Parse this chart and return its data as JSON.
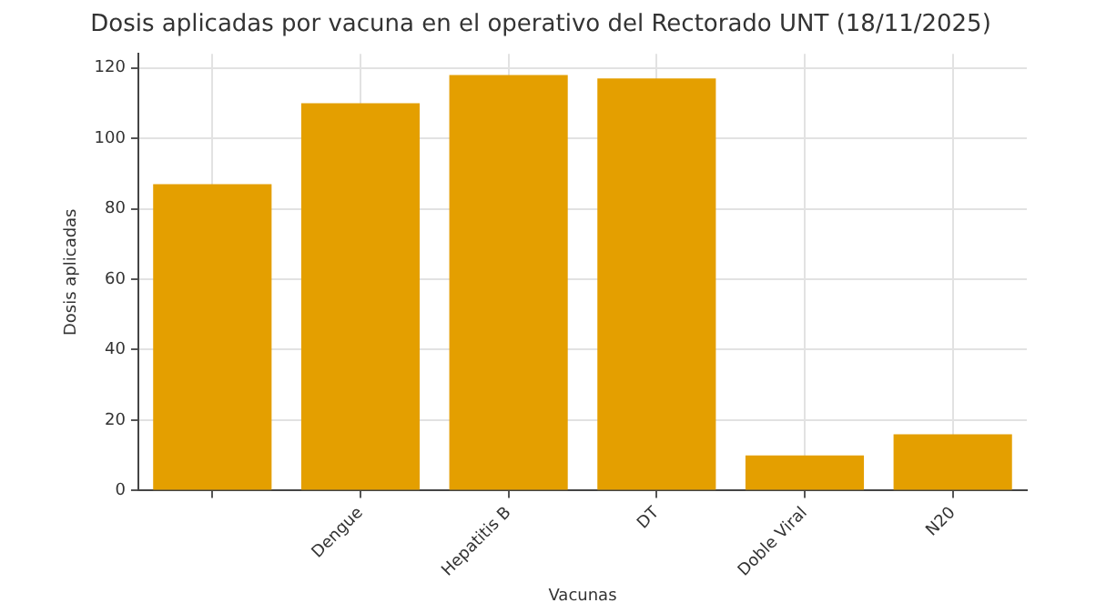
{
  "chart_data": {
    "type": "bar",
    "title": "Dosis aplicadas por vacuna en el operativo del Rectorado UNT (18/11/2025)",
    "xlabel": "Vacunas",
    "ylabel": "Dosis aplicadas",
    "categories": [
      null,
      "Dengue",
      "Hepatitis B",
      "DT",
      "Doble Viral",
      "N20"
    ],
    "values": [
      87,
      110,
      118,
      117,
      10,
      16
    ],
    "color": "#e49f00",
    "ylim": [
      0,
      124
    ],
    "yticks": [
      0,
      20,
      40,
      60,
      80,
      100,
      120
    ],
    "grid": true,
    "legend": false
  }
}
